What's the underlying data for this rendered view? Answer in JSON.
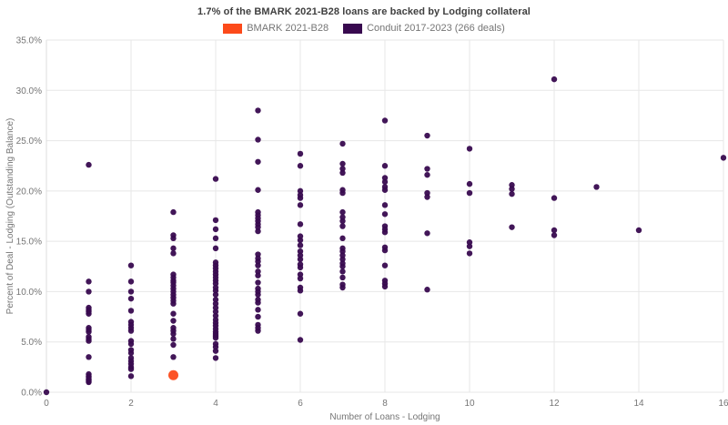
{
  "title": "1.7% of the BMARK 2021-B28 loans are backed by Lodging collateral",
  "legend": [
    {
      "label": "BMARK 2021-B28",
      "color": "#FC4A1A"
    },
    {
      "label": "Conduit 2017-2023 (266 deals)",
      "color": "#38094F"
    }
  ],
  "colors": {
    "bmark": "#FC4A1A",
    "conduit": "#38094F",
    "gridline": "#e7e7e7",
    "tick_text": "#757575",
    "title_text": "#404040"
  },
  "chart_data": {
    "type": "scatter",
    "title": "1.7% of the BMARK 2021-B28 loans are backed by Lodging collateral",
    "xlabel": "Number of Loans - Lodging",
    "ylabel": "Percent of Deal - Lodging (Outstanding Balance)",
    "xlim": [
      0,
      16
    ],
    "ylim": [
      0,
      35
    ],
    "grid": true,
    "legend_position": "top",
    "x_ticks": [
      {
        "value": 0,
        "label": "0"
      },
      {
        "value": 2,
        "label": "2"
      },
      {
        "value": 4,
        "label": "4"
      },
      {
        "value": 6,
        "label": "6"
      },
      {
        "value": 8,
        "label": "8"
      },
      {
        "value": 10,
        "label": "10"
      },
      {
        "value": 12,
        "label": "12"
      },
      {
        "value": 14,
        "label": "14"
      },
      {
        "value": 16,
        "label": "16"
      }
    ],
    "y_ticks": [
      {
        "value": 0,
        "label": "0.0%"
      },
      {
        "value": 5,
        "label": "5.0%"
      },
      {
        "value": 10,
        "label": "10.0%"
      },
      {
        "value": 15,
        "label": "15.0%"
      },
      {
        "value": 20,
        "label": "20.0%"
      },
      {
        "value": 25,
        "label": "25.0%"
      },
      {
        "value": 30,
        "label": "30.0%"
      },
      {
        "value": 35,
        "label": "35.0%"
      }
    ],
    "series": [
      {
        "name": "Conduit 2017-2023 (266 deals)",
        "color": "#38094F",
        "marker_radius": 3.2,
        "points": [
          [
            0,
            0.0
          ],
          [
            1,
            22.6
          ],
          [
            1,
            11.0
          ],
          [
            1,
            10.0
          ],
          [
            1,
            8.4
          ],
          [
            1,
            8.2
          ],
          [
            1,
            8.0
          ],
          [
            1,
            7.8
          ],
          [
            1,
            6.4
          ],
          [
            1,
            6.2
          ],
          [
            1,
            6.0
          ],
          [
            1,
            5.5
          ],
          [
            1,
            5.3
          ],
          [
            1,
            5.1
          ],
          [
            1,
            3.5
          ],
          [
            1,
            1.8
          ],
          [
            1,
            1.6
          ],
          [
            1,
            1.5
          ],
          [
            1,
            1.3
          ],
          [
            1,
            1.2
          ],
          [
            1,
            1.1
          ],
          [
            1,
            1.0
          ],
          [
            2,
            12.6
          ],
          [
            2,
            11.0
          ],
          [
            2,
            10.0
          ],
          [
            2,
            9.3
          ],
          [
            2,
            8.1
          ],
          [
            2,
            7.0
          ],
          [
            2,
            6.7
          ],
          [
            2,
            6.4
          ],
          [
            2,
            6.1
          ],
          [
            2,
            5.1
          ],
          [
            2,
            4.8
          ],
          [
            2,
            4.2
          ],
          [
            2,
            3.9
          ],
          [
            2,
            3.4
          ],
          [
            2,
            3.1
          ],
          [
            2,
            2.8
          ],
          [
            2,
            2.5
          ],
          [
            2,
            2.3
          ],
          [
            2,
            1.6
          ],
          [
            3,
            17.9
          ],
          [
            3,
            15.6
          ],
          [
            3,
            15.3
          ],
          [
            3,
            14.3
          ],
          [
            3,
            13.8
          ],
          [
            3,
            11.7
          ],
          [
            3,
            11.4
          ],
          [
            3,
            11.1
          ],
          [
            3,
            10.9
          ],
          [
            3,
            10.6
          ],
          [
            3,
            10.3
          ],
          [
            3,
            10.0
          ],
          [
            3,
            9.7
          ],
          [
            3,
            9.4
          ],
          [
            3,
            9.1
          ],
          [
            3,
            8.8
          ],
          [
            3,
            7.8
          ],
          [
            3,
            7.1
          ],
          [
            3,
            6.4
          ],
          [
            3,
            6.1
          ],
          [
            3,
            5.8
          ],
          [
            3,
            5.3
          ],
          [
            3,
            4.7
          ],
          [
            3,
            3.5
          ],
          [
            4,
            21.2
          ],
          [
            4,
            17.1
          ],
          [
            4,
            16.2
          ],
          [
            4,
            15.3
          ],
          [
            4,
            14.3
          ],
          [
            4,
            12.9
          ],
          [
            4,
            12.6
          ],
          [
            4,
            12.3
          ],
          [
            4,
            12.0
          ],
          [
            4,
            11.7
          ],
          [
            4,
            11.4
          ],
          [
            4,
            11.1
          ],
          [
            4,
            10.8
          ],
          [
            4,
            10.4
          ],
          [
            4,
            10.1
          ],
          [
            4,
            9.7
          ],
          [
            4,
            9.2
          ],
          [
            4,
            8.8
          ],
          [
            4,
            8.4
          ],
          [
            4,
            8.0
          ],
          [
            4,
            7.6
          ],
          [
            4,
            7.2
          ],
          [
            4,
            6.9
          ],
          [
            4,
            6.6
          ],
          [
            4,
            6.3
          ],
          [
            4,
            6.0
          ],
          [
            4,
            5.8
          ],
          [
            4,
            5.6
          ],
          [
            4,
            5.4
          ],
          [
            4,
            4.8
          ],
          [
            4,
            4.5
          ],
          [
            4,
            4.1
          ],
          [
            4,
            3.4
          ],
          [
            5,
            28.0
          ],
          [
            5,
            25.1
          ],
          [
            5,
            22.9
          ],
          [
            5,
            20.1
          ],
          [
            5,
            17.9
          ],
          [
            5,
            17.6
          ],
          [
            5,
            17.3
          ],
          [
            5,
            17.0
          ],
          [
            5,
            16.7
          ],
          [
            5,
            16.4
          ],
          [
            5,
            16.0
          ],
          [
            5,
            13.7
          ],
          [
            5,
            13.3
          ],
          [
            5,
            13.0
          ],
          [
            5,
            12.6
          ],
          [
            5,
            12.0
          ],
          [
            5,
            11.6
          ],
          [
            5,
            10.9
          ],
          [
            5,
            10.3
          ],
          [
            5,
            10.0
          ],
          [
            5,
            9.7
          ],
          [
            5,
            9.2
          ],
          [
            5,
            8.9
          ],
          [
            5,
            8.2
          ],
          [
            5,
            7.5
          ],
          [
            5,
            6.7
          ],
          [
            5,
            6.4
          ],
          [
            5,
            6.1
          ],
          [
            6,
            23.7
          ],
          [
            6,
            22.5
          ],
          [
            6,
            20.0
          ],
          [
            6,
            19.6
          ],
          [
            6,
            19.3
          ],
          [
            6,
            18.6
          ],
          [
            6,
            16.7
          ],
          [
            6,
            15.5
          ],
          [
            6,
            15.1
          ],
          [
            6,
            14.6
          ],
          [
            6,
            14.0
          ],
          [
            6,
            13.6
          ],
          [
            6,
            13.2
          ],
          [
            6,
            12.7
          ],
          [
            6,
            12.4
          ],
          [
            6,
            11.7
          ],
          [
            6,
            11.3
          ],
          [
            6,
            10.4
          ],
          [
            6,
            10.1
          ],
          [
            6,
            7.8
          ],
          [
            6,
            5.2
          ],
          [
            7,
            24.7
          ],
          [
            7,
            22.7
          ],
          [
            7,
            22.2
          ],
          [
            7,
            21.8
          ],
          [
            7,
            20.1
          ],
          [
            7,
            19.8
          ],
          [
            7,
            17.9
          ],
          [
            7,
            17.4
          ],
          [
            7,
            17.0
          ],
          [
            7,
            16.5
          ],
          [
            7,
            15.3
          ],
          [
            7,
            14.3
          ],
          [
            7,
            14.0
          ],
          [
            7,
            13.6
          ],
          [
            7,
            13.2
          ],
          [
            7,
            12.8
          ],
          [
            7,
            12.5
          ],
          [
            7,
            12.0
          ],
          [
            7,
            11.4
          ],
          [
            7,
            10.7
          ],
          [
            7,
            10.4
          ],
          [
            8,
            27.0
          ],
          [
            8,
            22.5
          ],
          [
            8,
            21.3
          ],
          [
            8,
            20.9
          ],
          [
            8,
            20.4
          ],
          [
            8,
            20.1
          ],
          [
            8,
            18.6
          ],
          [
            8,
            17.7
          ],
          [
            8,
            16.5
          ],
          [
            8,
            16.2
          ],
          [
            8,
            15.9
          ],
          [
            8,
            14.4
          ],
          [
            8,
            14.1
          ],
          [
            8,
            12.6
          ],
          [
            8,
            11.1
          ],
          [
            8,
            10.8
          ],
          [
            8,
            10.5
          ],
          [
            9,
            25.5
          ],
          [
            9,
            22.2
          ],
          [
            9,
            21.6
          ],
          [
            9,
            19.8
          ],
          [
            9,
            19.4
          ],
          [
            9,
            15.8
          ],
          [
            9,
            10.2
          ],
          [
            10,
            24.2
          ],
          [
            10,
            20.7
          ],
          [
            10,
            19.8
          ],
          [
            10,
            14.9
          ],
          [
            10,
            14.5
          ],
          [
            10,
            13.8
          ],
          [
            11,
            20.6
          ],
          [
            11,
            20.2
          ],
          [
            11,
            19.7
          ],
          [
            11,
            16.4
          ],
          [
            12,
            31.1
          ],
          [
            12,
            19.3
          ],
          [
            12,
            16.1
          ],
          [
            12,
            15.6
          ],
          [
            13,
            20.4
          ],
          [
            14,
            16.1
          ],
          [
            16,
            23.3
          ]
        ]
      },
      {
        "name": "BMARK 2021-B28",
        "color": "#FC4A1A",
        "marker_radius": 5.5,
        "points": [
          [
            3,
            1.7
          ]
        ]
      }
    ]
  }
}
